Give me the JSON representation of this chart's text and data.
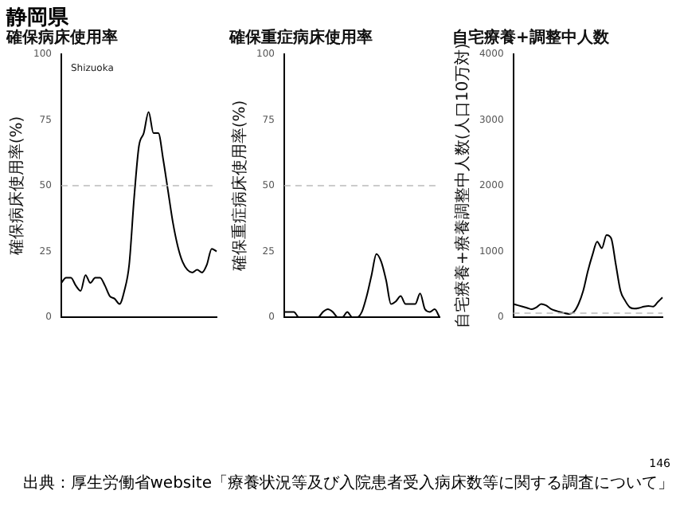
{
  "chart_data": [
    {
      "type": "line",
      "title": "確保病床使用率",
      "ylabel": "確保病床使用率(%)",
      "annotations": [
        "Shizuoka"
      ],
      "categories": [
        null,
        null,
        null,
        null,
        null,
        null,
        null,
        null,
        null,
        null,
        null,
        null,
        null,
        null,
        null,
        null,
        null,
        null,
        null,
        null,
        null,
        null,
        null,
        null,
        null,
        null,
        null,
        null,
        null,
        null,
        null,
        null,
        null
      ],
      "series": [
        {
          "color": "#000000",
          "values": [
            13,
            15,
            15,
            12,
            10,
            16,
            13,
            15,
            15,
            12,
            8,
            7,
            5,
            10,
            20,
            45,
            65,
            70,
            78,
            70,
            70,
            60,
            48,
            36,
            27,
            21,
            18,
            17,
            18,
            17,
            20,
            26,
            25
          ]
        }
      ],
      "ylim": [
        0,
        100
      ],
      "yticks": [
        0,
        25,
        50,
        75,
        100
      ],
      "grid": false,
      "legend": false,
      "marker": "none",
      "line_style": "solid",
      "ref_lines": [
        {
          "axis": "y",
          "value": 50,
          "color": "#bbbbbb",
          "line_style": "dashed"
        }
      ]
    },
    {
      "type": "line",
      "title": "確保重症病床使用率",
      "ylabel": "確保重症病床使用率(%)",
      "categories": [
        null,
        null,
        null,
        null,
        null,
        null,
        null,
        null,
        null,
        null,
        null,
        null,
        null,
        null,
        null,
        null,
        null,
        null,
        null,
        null,
        null,
        null,
        null,
        null,
        null,
        null,
        null,
        null,
        null,
        null,
        null,
        null,
        null
      ],
      "series": [
        {
          "color": "#000000",
          "values": [
            2,
            2,
            2,
            0,
            0,
            0,
            0,
            0,
            2,
            3,
            2,
            0,
            0,
            2,
            0,
            0,
            2,
            8,
            16,
            24,
            21,
            14,
            5,
            6,
            8,
            5,
            5,
            5,
            9,
            3,
            2,
            3,
            0
          ]
        }
      ],
      "ylim": [
        0,
        100
      ],
      "yticks": [
        0,
        25,
        50,
        75,
        100
      ],
      "grid": false,
      "legend": false,
      "marker": "none",
      "line_style": "solid",
      "ref_lines": [
        {
          "axis": "y",
          "value": 50,
          "color": "#bbbbbb",
          "line_style": "dashed"
        }
      ]
    },
    {
      "type": "line",
      "title": "自宅療養+調整中人数",
      "ylabel": "自宅療養+療養調整中人数(人口10万対)",
      "categories": [
        null,
        null,
        null,
        null,
        null,
        null,
        null,
        null,
        null,
        null,
        null,
        null,
        null,
        null,
        null,
        null,
        null,
        null,
        null,
        null,
        null,
        null,
        null,
        null,
        null,
        null,
        null,
        null,
        null,
        null,
        null,
        null,
        null
      ],
      "series": [
        {
          "color": "#000000",
          "values": [
            200,
            180,
            160,
            140,
            120,
            150,
            200,
            180,
            130,
            100,
            80,
            60,
            50,
            80,
            200,
            400,
            700,
            950,
            1150,
            1050,
            1250,
            1200,
            800,
            400,
            250,
            150,
            130,
            140,
            160,
            170,
            160,
            230,
            300
          ]
        }
      ],
      "ylim": [
        0,
        4000
      ],
      "yticks": [
        0,
        1000,
        2000,
        3000,
        4000
      ],
      "grid": false,
      "legend": false,
      "marker": "none",
      "line_style": "solid",
      "ref_lines": [
        {
          "axis": "y",
          "value": 60,
          "color": "#bbbbbb",
          "line_style": "dashed"
        }
      ]
    },
    {
      "type": "other",
      "title": "静岡県",
      "annotations": [
        "146",
        "出典：厚生労働省website「療養状況等及び入院患者受入病床数等に関する調査について」"
      ]
    }
  ]
}
